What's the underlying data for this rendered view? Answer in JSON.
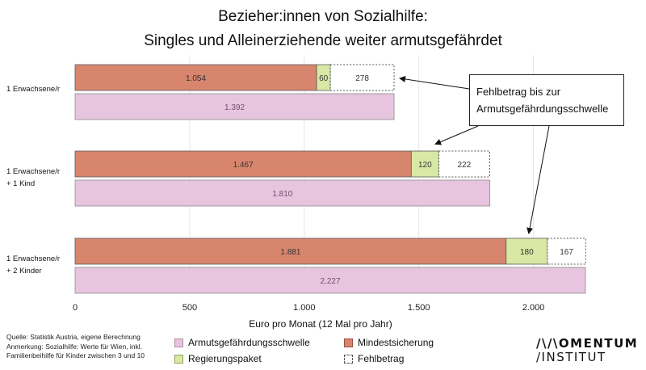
{
  "title": {
    "line1": "Bezieher:innen von Sozialhilfe:",
    "line2": "Singles und Alleinerziehende weiter armutsgefährdet"
  },
  "callout": {
    "line1": "Fehlbetrag bis zur",
    "line2": "Armutsgefährdungsschwelle"
  },
  "footer": {
    "source": "Quelle: Statistik Austria, eigene Berechnung",
    "note1": "Anmerkung: Sozialhilfe: Werte für Wien, inkl.",
    "note2": "Familienbeihilfe für Kinder zwischen 3 und 10"
  },
  "logo": {
    "line1": "/\\/\\OMENTUM",
    "line2": "/INSTITUT"
  },
  "colors": {
    "mindestsicherung": "#d8856d",
    "regierungspaket": "#d9e8a4",
    "armutsschwelle": "#e7c5de",
    "fehlbetrag_border": "#555555",
    "axis_text": "#222222"
  },
  "chart_data": {
    "type": "bar",
    "orientation": "horizontal",
    "categories": [
      [
        "1 Erwachsene/r"
      ],
      [
        "1 Erwachsene/r",
        "+ 1 Kind"
      ],
      [
        "1 Erwachsene/r",
        "+ 2 Kinder"
      ]
    ],
    "stacked_series": [
      {
        "name": "Mindestsicherung",
        "values": [
          1054,
          1467,
          1881
        ],
        "labels": [
          "1.054",
          "1.467",
          "1.881"
        ]
      },
      {
        "name": "Regierungspaket",
        "values": [
          60,
          120,
          180
        ],
        "labels": [
          "60",
          "120",
          "180"
        ]
      },
      {
        "name": "Fehlbetrag",
        "values": [
          278,
          222,
          167
        ],
        "labels": [
          "278",
          "222",
          "167"
        ]
      }
    ],
    "threshold_series": {
      "name": "Armutsgefährdungsschwelle",
      "values": [
        1392,
        1810,
        2227
      ],
      "labels": [
        "1.392",
        "1.810",
        "2.227"
      ]
    },
    "xlabel": "Euro pro Monat (12 Mal pro Jahr)",
    "xlim": [
      0,
      2227
    ],
    "xticks": [
      0,
      500,
      1000,
      1500,
      2000
    ],
    "xtick_labels": [
      "0",
      "500",
      "1.000",
      "1.500",
      "2.000"
    ],
    "grid": true,
    "legend": [
      {
        "name": "Armutsgefährdungsschwelle",
        "series": "armutsschwelle"
      },
      {
        "name": "Mindestsicherung",
        "series": "mindestsicherung"
      },
      {
        "name": "Regierungspaket",
        "series": "regierungspaket"
      },
      {
        "name": "Fehlbetrag",
        "series": "fehlbetrag"
      }
    ],
    "legend_position": "bottom"
  }
}
